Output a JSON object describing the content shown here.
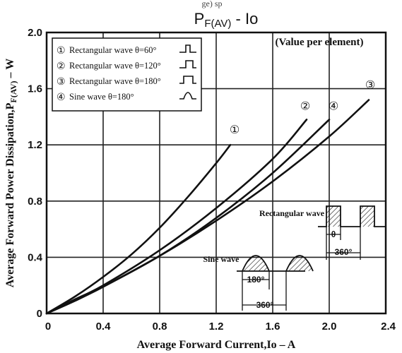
{
  "chart_data": {
    "type": "line",
    "top_cutoff": "ge) sp",
    "title_main": "P",
    "title_sub": "F(AV)",
    "title_rest": "  -  Io",
    "note": "(Value per element)",
    "xlabel": "Average Forward Current,Io  –  A",
    "ylabel": "Average Forward Power Dissipation,P",
    "ylabel_sub": "F(AV)",
    "ylabel_unit": "– W",
    "xlim": [
      0,
      2.4
    ],
    "ylim": [
      0,
      2.0
    ],
    "x_ticks": [
      "0",
      "0.4",
      "0.8",
      "1.2",
      "1.6",
      "2.0",
      "2.4"
    ],
    "y_ticks": [
      "0",
      "0.4",
      "0.8",
      "1.2",
      "1.6",
      "2.0"
    ],
    "grid": true,
    "legend_position": "top-left",
    "series": [
      {
        "name": "Rectangular wave θ=60°",
        "marker": "①",
        "x": [
          0,
          0.2,
          0.4,
          0.6,
          0.8,
          1.0,
          1.2,
          1.3
        ],
        "y": [
          0,
          0.12,
          0.26,
          0.42,
          0.61,
          0.83,
          1.07,
          1.2
        ]
      },
      {
        "name": "Rectangular wave θ=120°",
        "marker": "②",
        "x": [
          0,
          0.2,
          0.4,
          0.8,
          1.2,
          1.6,
          1.84
        ],
        "y": [
          0,
          0.1,
          0.2,
          0.45,
          0.75,
          1.1,
          1.38
        ]
      },
      {
        "name": "Rectangular wave θ=180°",
        "marker": "③",
        "x": [
          0,
          0.2,
          0.4,
          0.8,
          1.2,
          1.6,
          2.0,
          2.28
        ],
        "y": [
          0,
          0.09,
          0.19,
          0.41,
          0.66,
          0.94,
          1.26,
          1.52
        ]
      },
      {
        "name": "Sine wave θ=180°",
        "marker": "④",
        "x": [
          0,
          0.2,
          0.4,
          0.8,
          1.2,
          1.6,
          2.0
        ],
        "y": [
          0,
          0.09,
          0.19,
          0.41,
          0.68,
          1.0,
          1.38
        ]
      }
    ],
    "insets": {
      "rectangular": {
        "label": "Rectangular wave",
        "theta_symbol": "θ",
        "period": "360°"
      },
      "sine": {
        "label": "Sine wave",
        "half_period": "180°",
        "period": "360°"
      }
    }
  }
}
